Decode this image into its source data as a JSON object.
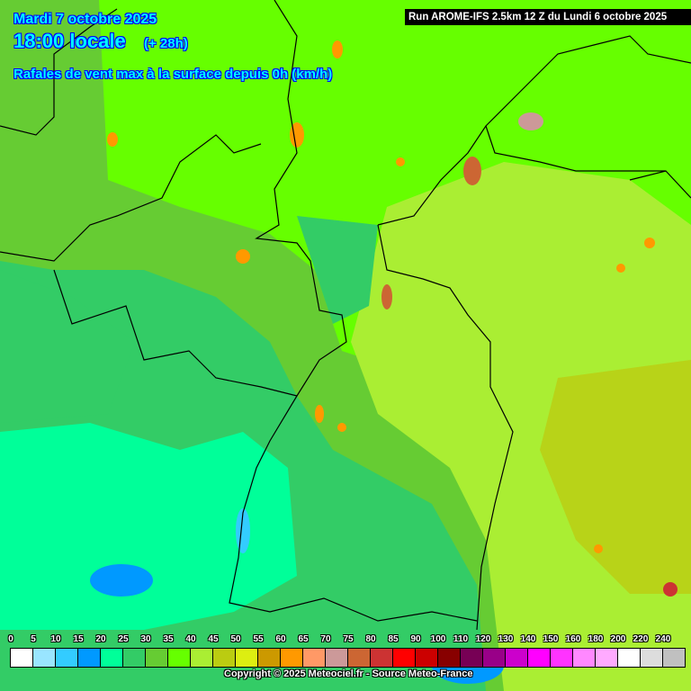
{
  "header": {
    "date": "Mardi 7 octobre 2025",
    "time": "18:00 locale",
    "offset": "(+ 28h)",
    "parameter": "Rafales de vent max à la surface depuis 0h (km/h)",
    "run": "Run AROME-IFS 2.5km 12 Z du Lundi 6 octobre 2025"
  },
  "legend": {
    "labels": [
      "0",
      "5",
      "10",
      "15",
      "20",
      "25",
      "30",
      "35",
      "40",
      "45",
      "50",
      "55",
      "60",
      "65",
      "70",
      "75",
      "80",
      "85",
      "90",
      "100",
      "110",
      "120",
      "130",
      "140",
      "150",
      "160",
      "180",
      "200",
      "220",
      "240"
    ],
    "colors": [
      "#ffffff",
      "#99e5ff",
      "#33ccff",
      "#0099ff",
      "#00ff99",
      "#33cc66",
      "#66cc33",
      "#66ff00",
      "#aaee33",
      "#bbcc11",
      "#ddee11",
      "#cc9900",
      "#ff9900",
      "#ff9966",
      "#cc9999",
      "#cc6633",
      "#cc3333",
      "#ff0000",
      "#cc0000",
      "#880000",
      "#770055",
      "#990088",
      "#cc00cc",
      "#ff00ff",
      "#ff33ff",
      "#ff88ff",
      "#ffaaff",
      "#ffffff",
      "#dddddd",
      "#c0c0c0"
    ]
  },
  "footer": {
    "copyright": "Copyright © 2025 Meteociel.fr - Source Meteo-France"
  }
}
